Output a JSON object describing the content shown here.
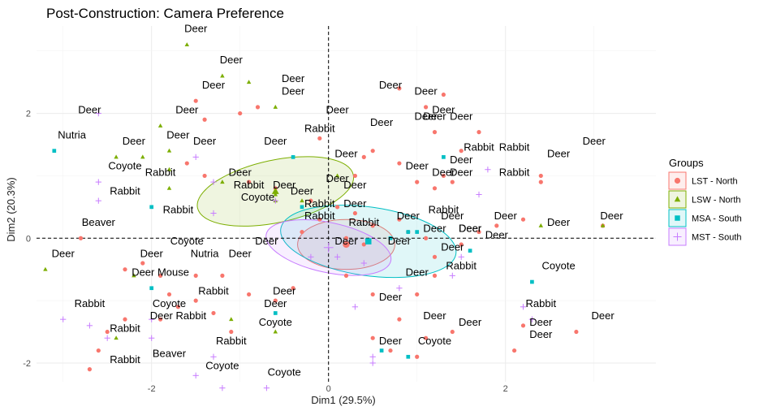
{
  "chart_data": {
    "type": "scatter",
    "title": "Post-Construction: Camera Preference",
    "xlabel": "Dim1 (29.5%)",
    "ylabel": "Dim2 (20.3%)",
    "xlim": [
      -3.3,
      3.7
    ],
    "ylim": [
      -2.3,
      3.4
    ],
    "x_ticks": [
      -2,
      0,
      2
    ],
    "y_ticks": [
      -2,
      0,
      2
    ],
    "grid": true,
    "legend_position": "right",
    "legend_title": "Groups",
    "groups": [
      {
        "name": "LST - North",
        "color": "#F8766D",
        "shape": "circle"
      },
      {
        "name": "LSW - North",
        "color": "#7CAE00",
        "shape": "triangle"
      },
      {
        "name": "MSA - South",
        "color": "#00BFC4",
        "shape": "square"
      },
      {
        "name": "MST - South",
        "color": "#C77CFF",
        "shape": "plus"
      }
    ],
    "points": {
      "LST - North": [
        [
          -1.5,
          2.2
        ],
        [
          -1.0,
          2.0
        ],
        [
          -1.4,
          1.9
        ],
        [
          -0.8,
          2.1
        ],
        [
          -0.1,
          1.6
        ],
        [
          0.5,
          1.4
        ],
        [
          0.8,
          2.4
        ],
        [
          1.1,
          2.1
        ],
        [
          1.2,
          1.7
        ],
        [
          1.3,
          2.3
        ],
        [
          1.5,
          1.4
        ],
        [
          1.7,
          1.7
        ],
        [
          0.4,
          1.3
        ],
        [
          0.8,
          1.2
        ],
        [
          0.3,
          1.0
        ],
        [
          1.0,
          0.9
        ],
        [
          1.2,
          0.8
        ],
        [
          1.3,
          1.0
        ],
        [
          1.4,
          0.9
        ],
        [
          -1.6,
          1.2
        ],
        [
          -1.4,
          1.0
        ],
        [
          -0.9,
          0.9
        ],
        [
          -0.6,
          0.8
        ],
        [
          -0.2,
          0.6
        ],
        [
          0.1,
          0.5
        ],
        [
          0.3,
          0.4
        ],
        [
          -0.3,
          0.1
        ],
        [
          -0.1,
          0.3
        ],
        [
          0.2,
          0.0
        ],
        [
          0.4,
          -0.1
        ],
        [
          0.5,
          0.2
        ],
        [
          0.8,
          0.3
        ],
        [
          0.9,
          0.1
        ],
        [
          1.1,
          0.0
        ],
        [
          1.2,
          -0.3
        ],
        [
          1.5,
          -0.1
        ],
        [
          1.7,
          0.1
        ],
        [
          1.9,
          0.2
        ],
        [
          2.2,
          0.3
        ],
        [
          2.4,
          0.9
        ],
        [
          2.4,
          1.0
        ],
        [
          3.1,
          0.2
        ],
        [
          -2.8,
          0.0
        ],
        [
          -2.3,
          -0.5
        ],
        [
          -2.1,
          -0.4
        ],
        [
          -1.9,
          -0.6
        ],
        [
          -1.8,
          -0.9
        ],
        [
          -1.5,
          -0.6
        ],
        [
          -1.2,
          -0.6
        ],
        [
          -1.5,
          -1.0
        ],
        [
          -1.3,
          -1.2
        ],
        [
          -0.9,
          -0.9
        ],
        [
          -0.6,
          -1.0
        ],
        [
          -0.4,
          -0.8
        ],
        [
          -1.9,
          -1.3
        ],
        [
          -1.7,
          -1.1
        ],
        [
          -2.3,
          -1.3
        ],
        [
          -2.5,
          -1.5
        ],
        [
          -2.6,
          -1.8
        ],
        [
          -2.7,
          -2.1
        ],
        [
          0.2,
          -0.6
        ],
        [
          0.5,
          -0.9
        ],
        [
          0.8,
          -1.3
        ],
        [
          0.5,
          -1.6
        ],
        [
          0.7,
          -1.8
        ],
        [
          1.0,
          -1.9
        ],
        [
          1.1,
          -1.6
        ],
        [
          1.4,
          -1.5
        ],
        [
          1.0,
          -0.9
        ],
        [
          1.2,
          -0.6
        ],
        [
          2.2,
          -1.4
        ],
        [
          2.1,
          -1.8
        ],
        [
          2.8,
          -1.5
        ],
        [
          -1.1,
          -1.5
        ]
      ],
      "LSW - North": [
        [
          -1.6,
          3.1
        ],
        [
          -1.2,
          2.6
        ],
        [
          -0.9,
          2.5
        ],
        [
          -0.6,
          2.1
        ],
        [
          -1.9,
          1.8
        ],
        [
          -1.8,
          1.4
        ],
        [
          -2.1,
          1.3
        ],
        [
          -2.4,
          1.3
        ],
        [
          -1.2,
          0.9
        ],
        [
          -0.6,
          0.7
        ],
        [
          -0.6,
          0.6
        ],
        [
          -0.3,
          0.6
        ],
        [
          0.1,
          1.0
        ],
        [
          -1.8,
          1.1
        ],
        [
          -1.8,
          0.8
        ],
        [
          -3.2,
          -0.5
        ],
        [
          -2.2,
          -0.6
        ],
        [
          -2.4,
          -1.6
        ],
        [
          -1.1,
          -1.3
        ],
        [
          -0.6,
          -1.5
        ],
        [
          2.4,
          0.2
        ],
        [
          3.1,
          0.2
        ]
      ],
      "MSA - South": [
        [
          -3.1,
          1.4
        ],
        [
          -2.0,
          0.5
        ],
        [
          -0.4,
          1.3
        ],
        [
          -0.3,
          0.5
        ],
        [
          0.2,
          -0.1
        ],
        [
          0.2,
          -0.1
        ],
        [
          0.7,
          0.0
        ],
        [
          0.9,
          0.1
        ],
        [
          1.0,
          0.1
        ],
        [
          1.3,
          1.3
        ],
        [
          1.6,
          -0.2
        ],
        [
          -2.0,
          -0.8
        ],
        [
          -0.6,
          -1.2
        ],
        [
          0.6,
          -1.8
        ],
        [
          0.9,
          -1.9
        ],
        [
          2.3,
          -0.7
        ]
      ],
      "MST - South": [
        [
          -2.6,
          2.0
        ],
        [
          -2.6,
          0.9
        ],
        [
          -2.6,
          0.6
        ],
        [
          -1.5,
          1.3
        ],
        [
          -1.3,
          0.9
        ],
        [
          -0.6,
          0.6
        ],
        [
          -1.3,
          0.4
        ],
        [
          -3.0,
          -1.3
        ],
        [
          -2.7,
          -1.4
        ],
        [
          -2.5,
          -1.6
        ],
        [
          -2.0,
          -1.6
        ],
        [
          -2.0,
          -1.3
        ],
        [
          -1.3,
          -1.9
        ],
        [
          -1.5,
          -2.2
        ],
        [
          -1.2,
          -2.4
        ],
        [
          -0.7,
          -2.4
        ],
        [
          -0.2,
          -0.3
        ],
        [
          0.1,
          -0.3
        ],
        [
          0.4,
          -0.4
        ],
        [
          0.3,
          -1.1
        ],
        [
          0.8,
          -0.8
        ],
        [
          1.4,
          -0.6
        ],
        [
          1.5,
          -0.3
        ],
        [
          1.8,
          1.1
        ],
        [
          1.7,
          0.7
        ],
        [
          2.2,
          -1.1
        ],
        [
          2.3,
          -1.3
        ],
        [
          0.5,
          -1.9
        ],
        [
          0.5,
          -2.0
        ]
      ]
    },
    "ellipses": [
      {
        "group": "LST - North",
        "cx": 0.2,
        "cy": -0.1,
        "rx": 0.55,
        "ry": 0.4,
        "angle_deg": 0
      },
      {
        "group": "LSW - North",
        "cx": -0.6,
        "cy": 0.75,
        "rx": 0.9,
        "ry": 0.5,
        "angle_deg": 12
      },
      {
        "group": "MSA - South",
        "cx": 0.45,
        "cy": -0.05,
        "rx": 1.0,
        "ry": 0.55,
        "angle_deg": -8
      },
      {
        "group": "MST - South",
        "cx": 0.0,
        "cy": -0.15,
        "rx": 0.72,
        "ry": 0.4,
        "angle_deg": -12
      }
    ],
    "labels": [
      {
        "text": "Deer",
        "x": -1.5,
        "y": 3.3
      },
      {
        "text": "Deer",
        "x": -1.1,
        "y": 2.8
      },
      {
        "text": "Deer",
        "x": -0.4,
        "y": 2.5
      },
      {
        "text": "Deer",
        "x": -1.3,
        "y": 2.4
      },
      {
        "text": "Deer",
        "x": -0.4,
        "y": 2.3
      },
      {
        "text": "Deer",
        "x": 0.7,
        "y": 2.4
      },
      {
        "text": "Deer",
        "x": 1.1,
        "y": 2.3
      },
      {
        "text": "Deer",
        "x": 1.3,
        "y": 2.0
      },
      {
        "text": "Deer",
        "x": 1.1,
        "y": 1.9
      },
      {
        "text": "Deer",
        "x": 1.2,
        "y": 1.9
      },
      {
        "text": "Deer",
        "x": 1.5,
        "y": 1.9
      },
      {
        "text": "Deer",
        "x": 0.1,
        "y": 2.0
      },
      {
        "text": "Deer",
        "x": -2.7,
        "y": 2.0
      },
      {
        "text": "Deer",
        "x": -1.6,
        "y": 2.0
      },
      {
        "text": "Deer",
        "x": -2.2,
        "y": 1.5
      },
      {
        "text": "Deer",
        "x": -1.7,
        "y": 1.6
      },
      {
        "text": "Deer",
        "x": -1.4,
        "y": 1.5
      },
      {
        "text": "Deer",
        "x": -0.6,
        "y": 1.5
      },
      {
        "text": "Deer",
        "x": 0.6,
        "y": 1.8
      },
      {
        "text": "Deer",
        "x": 0.2,
        "y": 1.3
      },
      {
        "text": "Deer",
        "x": 3.0,
        "y": 1.5
      },
      {
        "text": "Deer",
        "x": 2.6,
        "y": 1.3
      },
      {
        "text": "Deer",
        "x": 1.5,
        "y": 1.2
      },
      {
        "text": "Deer",
        "x": 1.0,
        "y": 1.1
      },
      {
        "text": "Deer",
        "x": 1.3,
        "y": 1.0
      },
      {
        "text": "Deer",
        "x": 1.5,
        "y": 1.0
      },
      {
        "text": "Deer",
        "x": 0.1,
        "y": 0.9
      },
      {
        "text": "Deer",
        "x": 0.3,
        "y": 0.8
      },
      {
        "text": "Deer",
        "x": -1.0,
        "y": 1.0
      },
      {
        "text": "Deer",
        "x": -0.5,
        "y": 0.8
      },
      {
        "text": "Deer",
        "x": -0.3,
        "y": 0.7
      },
      {
        "text": "Deer",
        "x": 0.3,
        "y": 0.5
      },
      {
        "text": "Deer",
        "x": 0.9,
        "y": 0.3
      },
      {
        "text": "Deer",
        "x": 1.2,
        "y": 0.1
      },
      {
        "text": "Deer",
        "x": 1.4,
        "y": 0.3
      },
      {
        "text": "Deer",
        "x": 1.6,
        "y": 0.1
      },
      {
        "text": "Deer",
        "x": 1.6,
        "y": 0.1
      },
      {
        "text": "Deer",
        "x": 2.0,
        "y": 0.3
      },
      {
        "text": "Deer",
        "x": 2.6,
        "y": 0.2
      },
      {
        "text": "Deer",
        "x": 3.2,
        "y": 0.3
      },
      {
        "text": "Deer",
        "x": 0.2,
        "y": -0.1
      },
      {
        "text": "Deer",
        "x": 0.8,
        "y": -0.1
      },
      {
        "text": "Deer",
        "x": 1.4,
        "y": -0.2
      },
      {
        "text": "Deer",
        "x": 1.9,
        "y": 0.0
      },
      {
        "text": "Deer",
        "x": -0.7,
        "y": -0.1
      },
      {
        "text": "Deer",
        "x": -1.0,
        "y": -0.3
      },
      {
        "text": "Deer",
        "x": -2.0,
        "y": -0.3
      },
      {
        "text": "Deer",
        "x": -3.0,
        "y": -0.3
      },
      {
        "text": "Deer Mouse",
        "x": -1.9,
        "y": -0.6
      },
      {
        "text": "Deer",
        "x": -0.5,
        "y": -0.9
      },
      {
        "text": "Deer",
        "x": -0.6,
        "y": -1.1
      },
      {
        "text": "Deer Rabbit",
        "x": -1.7,
        "y": -1.3
      },
      {
        "text": "Deer",
        "x": 1.0,
        "y": -0.6
      },
      {
        "text": "Deer",
        "x": 0.7,
        "y": -1.0
      },
      {
        "text": "Deer",
        "x": 1.2,
        "y": -1.3
      },
      {
        "text": "Deer",
        "x": 1.6,
        "y": -1.4
      },
      {
        "text": "Deer",
        "x": 0.7,
        "y": -1.7
      },
      {
        "text": "Deer",
        "x": 2.4,
        "y": -1.4
      },
      {
        "text": "Deer",
        "x": 2.4,
        "y": -1.6
      },
      {
        "text": "Deer",
        "x": 3.1,
        "y": -1.3
      },
      {
        "text": "Rabbit",
        "x": -0.1,
        "y": 1.7
      },
      {
        "text": "Rabbit",
        "x": 1.7,
        "y": 1.4
      },
      {
        "text": "Rabbit",
        "x": 2.1,
        "y": 1.4
      },
      {
        "text": "Rabbit",
        "x": 2.1,
        "y": 1.0
      },
      {
        "text": "Rabbit",
        "x": -1.9,
        "y": 1.0
      },
      {
        "text": "Rabbit",
        "x": -2.3,
        "y": 0.7
      },
      {
        "text": "Rabbit",
        "x": -0.9,
        "y": 0.8
      },
      {
        "text": "Rabbit",
        "x": -1.7,
        "y": 0.4
      },
      {
        "text": "Rabbit",
        "x": -0.1,
        "y": 0.5
      },
      {
        "text": "Rabbit",
        "x": -0.1,
        "y": 0.3
      },
      {
        "text": "Rabbit",
        "x": 0.4,
        "y": 0.2
      },
      {
        "text": "Rabbit",
        "x": 1.3,
        "y": 0.4
      },
      {
        "text": "Rabbit",
        "x": 1.5,
        "y": -0.5
      },
      {
        "text": "Rabbit",
        "x": -1.3,
        "y": -0.9
      },
      {
        "text": "Rabbit",
        "x": -2.7,
        "y": -1.1
      },
      {
        "text": "Rabbit",
        "x": -2.3,
        "y": -1.5
      },
      {
        "text": "Rabbit",
        "x": -1.1,
        "y": -1.7
      },
      {
        "text": "Rabbit",
        "x": -2.3,
        "y": -2.0
      },
      {
        "text": "Rabbit",
        "x": 2.4,
        "y": -1.1
      },
      {
        "text": "Coyote",
        "x": -2.3,
        "y": 1.1
      },
      {
        "text": "Coyote",
        "x": -0.8,
        "y": 0.6
      },
      {
        "text": "Coyote",
        "x": -1.6,
        "y": -0.1
      },
      {
        "text": "Coyote",
        "x": -1.8,
        "y": -1.1
      },
      {
        "text": "Coyote",
        "x": -0.6,
        "y": -1.4
      },
      {
        "text": "Coyote",
        "x": -1.2,
        "y": -2.1
      },
      {
        "text": "Coyote",
        "x": -0.5,
        "y": -2.2
      },
      {
        "text": "Coyote",
        "x": 1.2,
        "y": -1.7
      },
      {
        "text": "Coyote",
        "x": 2.6,
        "y": -0.5
      },
      {
        "text": "Nutria",
        "x": -2.9,
        "y": 1.6
      },
      {
        "text": "Nutria",
        "x": -1.4,
        "y": -0.3
      },
      {
        "text": "Beaver",
        "x": -2.6,
        "y": 0.2
      },
      {
        "text": "Beaver",
        "x": -1.8,
        "y": -1.9
      }
    ]
  }
}
